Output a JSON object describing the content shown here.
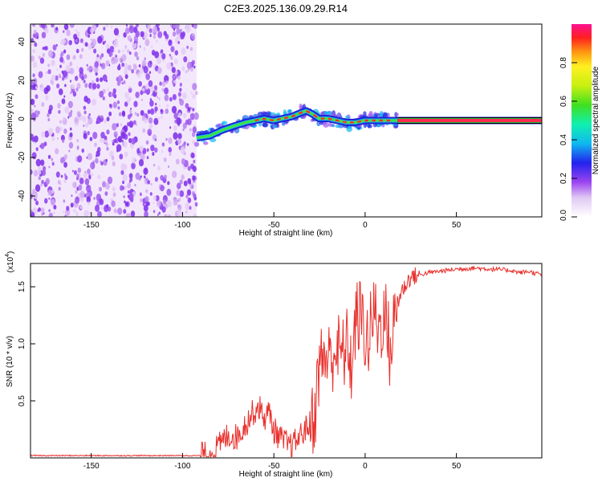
{
  "title": "C2E3.2025.136.09.29.R14",
  "top_panel": {
    "xlabel": "Height of straight line (km)",
    "ylabel": "Frequency (Hz)",
    "x_ticks": [
      "-150",
      "-100",
      "-50",
      "0",
      "50"
    ],
    "y_ticks": [
      "40",
      "20",
      "0",
      "-20",
      "-40"
    ]
  },
  "colorbar": {
    "label": "Normalized spectral amplitude",
    "ticks": [
      "0.0",
      "0.2",
      "0.4",
      "0.6",
      "0.8"
    ]
  },
  "bottom_panel": {
    "xlabel": "Height of straight line (km)",
    "ylabel": "SNR (10 * v/v)",
    "multiplier_base": "(x10",
    "multiplier_exp": "4",
    "multiplier_close": ")",
    "x_ticks": [
      "-150",
      "-100",
      "-50",
      "0",
      "50"
    ],
    "y_ticks": [
      "1.5",
      "1.0",
      "0.5"
    ]
  },
  "chart_data": [
    {
      "type": "heatmap",
      "title": "C2E3.2025.136.09.29.R14",
      "xlabel": "Height of straight line (km)",
      "ylabel": "Frequency (Hz)",
      "xlim": [
        -183,
        97
      ],
      "ylim": [
        -50,
        50
      ],
      "colorbar": {
        "label": "Normalized spectral amplitude",
        "range": [
          0,
          1
        ]
      },
      "noise_region_x": [
        -183,
        -92
      ],
      "ridge": {
        "x": [
          -92,
          -85,
          -78,
          -72,
          -65,
          -60,
          -55,
          -50,
          -45,
          -40,
          -35,
          -32,
          -28,
          -25,
          -20,
          -15,
          -10,
          -5,
          0,
          5,
          10,
          15,
          20,
          97
        ],
        "freq": [
          -9,
          -8,
          -5,
          -3,
          -1,
          0,
          1,
          0,
          1,
          2,
          4,
          5,
          3,
          1,
          1,
          0,
          -1,
          -1,
          0,
          0,
          0,
          0,
          0,
          0
        ]
      }
    },
    {
      "type": "line",
      "xlabel": "Height of straight line (km)",
      "ylabel": "SNR (10 * v/v)",
      "xlim": [
        -183,
        97
      ],
      "ylim": [
        0,
        1.7
      ],
      "y_multiplier": "x10^4",
      "color": "#e8302c",
      "x": [
        -183,
        -150,
        -120,
        -100,
        -90,
        -85,
        -80,
        -75,
        -70,
        -65,
        -62,
        -58,
        -55,
        -52,
        -50,
        -45,
        -40,
        -35,
        -30,
        -27,
        -25,
        -22,
        -20,
        -16,
        -12,
        -9,
        -7,
        -5,
        -2,
        0,
        2,
        5,
        8,
        10,
        12,
        14,
        17,
        20,
        25,
        30,
        35,
        40,
        50,
        60,
        70,
        80,
        85,
        90,
        97
      ],
      "values": [
        0.02,
        0.02,
        0.02,
        0.02,
        0.02,
        0.03,
        0.1,
        0.2,
        0.18,
        0.3,
        0.38,
        0.45,
        0.35,
        0.4,
        0.25,
        0.15,
        0.1,
        0.2,
        0.3,
        0.42,
        0.8,
        0.9,
        0.85,
        0.95,
        0.9,
        1.0,
        0.75,
        1.2,
        1.25,
        1.1,
        1.0,
        1.3,
        1.1,
        1.25,
        1.2,
        0.9,
        1.3,
        1.45,
        1.58,
        1.6,
        1.62,
        1.63,
        1.65,
        1.66,
        1.65,
        1.64,
        1.62,
        1.63,
        1.6
      ]
    }
  ]
}
